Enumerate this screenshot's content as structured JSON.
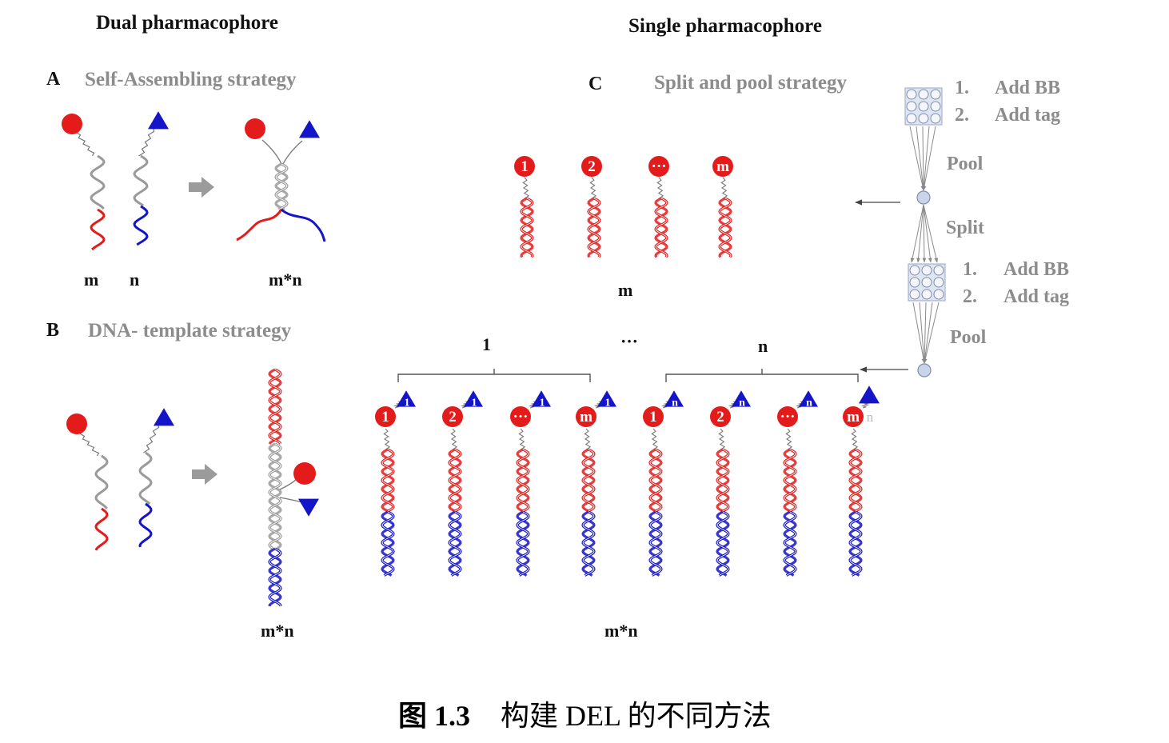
{
  "headers": {
    "dual": "Dual pharmacophore",
    "single": "Single pharmacophore"
  },
  "panel_a": {
    "letter": "A",
    "strategy": "Self-Assembling strategy",
    "label_m": "m",
    "label_n": "n",
    "label_product": "m*n"
  },
  "panel_b": {
    "letter": "B",
    "strategy": "DNA- template strategy",
    "label_product": "m*n"
  },
  "panel_c": {
    "letter": "C",
    "strategy": "Split and pool strategy",
    "round1_markers": [
      "1",
      "2",
      "···",
      "m"
    ],
    "round1_label": "m",
    "group_labels": [
      "1",
      "···",
      "n"
    ],
    "round2_bottom_markers": [
      "1",
      "2",
      "···",
      "m",
      "1",
      "2",
      "···",
      "m"
    ],
    "round2_top_markers": [
      "1",
      "1",
      "1",
      "1",
      "n",
      "n",
      "n",
      "n"
    ],
    "product_label": "m*n"
  },
  "workflow": {
    "step_add_bb_num": "1.",
    "step_add_bb": "Add BB",
    "step_add_tag_num": "2.",
    "step_add_tag": "Add tag",
    "pool": "Pool",
    "split": "Split",
    "step2_add_bb_num": "1.",
    "step2_add_bb": "Add BB",
    "step2_add_tag_num": "2.",
    "step2_add_tag": "Add tag",
    "pool2": "Pool"
  },
  "caption": {
    "figure_no": "图 1.3",
    "text": "构建 DEL 的不同方法"
  },
  "colors": {
    "red": "#e31b1b",
    "blue": "#1414c8",
    "grey_strand": "#9a9a9a",
    "arrow_grey": "#9b9b9b",
    "label_grey": "#8c8c8c"
  }
}
